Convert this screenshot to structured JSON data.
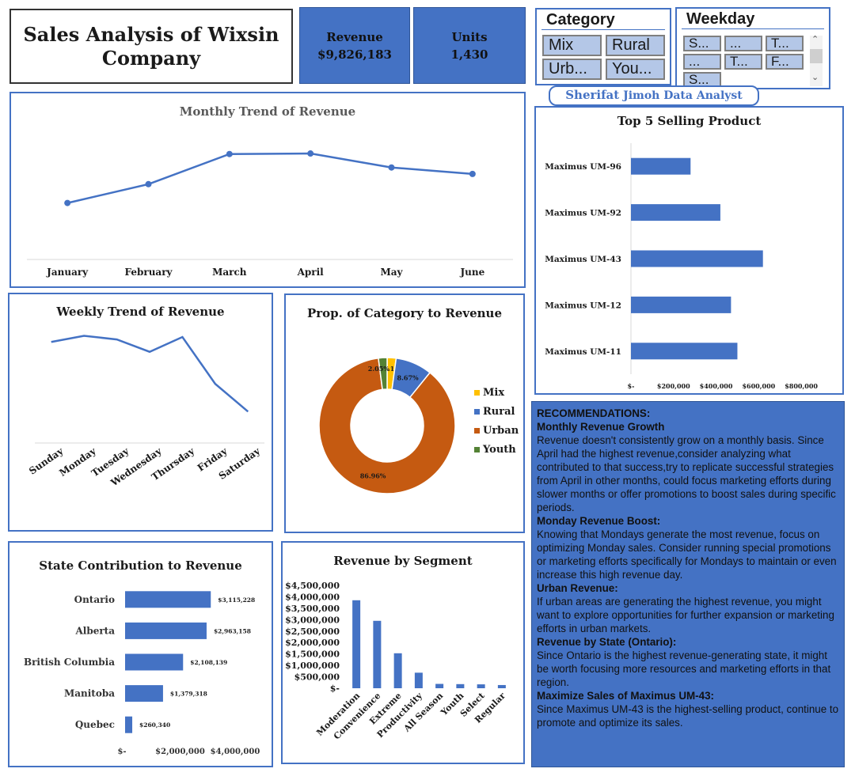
{
  "header": {
    "title_line1": "Sales Analysis of Wixsin",
    "title_line2": "Company"
  },
  "kpis": [
    {
      "label": "Revenue",
      "value": "$9,826,183"
    },
    {
      "label": "Units",
      "value": "1,430"
    }
  ],
  "category_slicer": {
    "title": "Category",
    "items": [
      "Mix",
      "Rural",
      "Urb...",
      "You..."
    ]
  },
  "weekday_slicer": {
    "title": "Weekday",
    "items": [
      "S...",
      "...",
      "T...",
      "...",
      "T...",
      "F...",
      "S..."
    ],
    "scroll_up": "⌃",
    "scroll_down": "⌄"
  },
  "author": {
    "first": "Sherifat",
    "rest": "Jimoh Data Analyst"
  },
  "colors": {
    "accent": "#4472c4",
    "mix": "#ffc000",
    "rural": "#4472c4",
    "urban": "#c55a11",
    "youth": "#548235"
  },
  "chart_data": [
    {
      "id": "monthly",
      "type": "line",
      "title": "Monthly Trend of Revenue",
      "categories": [
        "January",
        "February",
        "March",
        "April",
        "May",
        "June"
      ],
      "values": [
        1050000,
        1400000,
        1960000,
        1970000,
        1710000,
        1590000
      ],
      "ylim": [
        0,
        2500000
      ]
    },
    {
      "id": "weekly",
      "type": "line",
      "title": "Weekly Trend of Revenue",
      "categories": [
        "Sunday",
        "Monday",
        "Tuesday",
        "Wednesday",
        "Thursday",
        "Friday",
        "Saturday"
      ],
      "values": [
        1640000,
        1740000,
        1680000,
        1480000,
        1720000,
        960000,
        510000
      ],
      "ylim": [
        0,
        1900000
      ]
    },
    {
      "id": "category",
      "type": "pie",
      "title": "Prop. of Category to Revenue",
      "labels": [
        "Mix",
        "Rural",
        "Urban",
        "Youth"
      ],
      "values": [
        2.12,
        8.67,
        86.96,
        2.05
      ],
      "data_labels": [
        "2.12%",
        "8.67%",
        "86.96%",
        "2.05%"
      ]
    },
    {
      "id": "top5",
      "type": "bar",
      "orientation": "horizontal",
      "title": "Top 5 Selling Product",
      "categories": [
        "Maximus UM-96",
        "Maximus UM-92",
        "Maximus UM-43",
        "Maximus UM-12",
        "Maximus UM-11"
      ],
      "values": [
        280000,
        420000,
        620000,
        470000,
        500000
      ],
      "xlim": [
        0,
        900000
      ],
      "xticks": [
        "$-",
        "$200,000",
        "$400,000",
        "$600,000",
        "$800,000"
      ]
    },
    {
      "id": "state",
      "type": "bar",
      "orientation": "horizontal",
      "title": "State Contribution to Revenue",
      "categories": [
        "Ontario",
        "Alberta",
        "British Columbia",
        "Manitoba",
        "Quebec"
      ],
      "values": [
        3115228,
        2963158,
        2108139,
        1379318,
        260340
      ],
      "data_labels": [
        "$3,115,228",
        "$2,963,158",
        "$2,108,139",
        "$1,379,318",
        "$260,340"
      ],
      "xlim": [
        0,
        4000000
      ],
      "xticks": [
        "$-",
        "$2,000,000",
        "$4,000,000"
      ]
    },
    {
      "id": "segment",
      "type": "bar",
      "title": "Revenue by Segment",
      "categories": [
        "Moderation",
        "Convenience",
        "Extreme",
        "Productivity",
        "All Season",
        "Youth",
        "Select",
        "Regular"
      ],
      "values": [
        3850000,
        2950000,
        1530000,
        680000,
        190000,
        180000,
        170000,
        140000
      ],
      "ylim": [
        0,
        4500000
      ],
      "yticks": [
        "$-",
        "$500,000",
        "$1,000,000",
        "$1,500,000",
        "$2,000,000",
        "$2,500,000",
        "$3,000,000",
        "$3,500,000",
        "$4,000,000",
        "$4,500,000"
      ]
    }
  ],
  "recommendations": {
    "heading": "RECOMMENDATIONS:",
    "sections": [
      {
        "title": "Monthly Revenue Growth",
        "text": "Revenue doesn't consistently grow on a monthly basis. Since April had the highest revenue,consider analyzing what contributed to that success,try to replicate successful strategies from April in other months, could focus marketing efforts during slower months or offer promotions to boost sales during specific periods."
      },
      {
        "title": "Monday Revenue Boost:",
        "text": "Knowing that Mondays generate the most revenue, focus on optimizing Monday sales. Consider running special promotions or marketing efforts specifically for Mondays to maintain or even increase this high revenue day."
      },
      {
        "title": "Urban Revenue:",
        "text": "If urban areas are generating the highest revenue, you might want to explore opportunities for further expansion or marketing efforts in urban markets."
      },
      {
        "title": "Revenue by State (Ontario):",
        "text": "Since Ontario is the highest revenue-generating state, it might be worth focusing more resources and marketing efforts in that region."
      },
      {
        "title": "Maximize Sales of Maximus UM-43:",
        "text": "Since Maximus UM-43 is the highest-selling product, continue to promote and optimize its sales."
      }
    ]
  }
}
